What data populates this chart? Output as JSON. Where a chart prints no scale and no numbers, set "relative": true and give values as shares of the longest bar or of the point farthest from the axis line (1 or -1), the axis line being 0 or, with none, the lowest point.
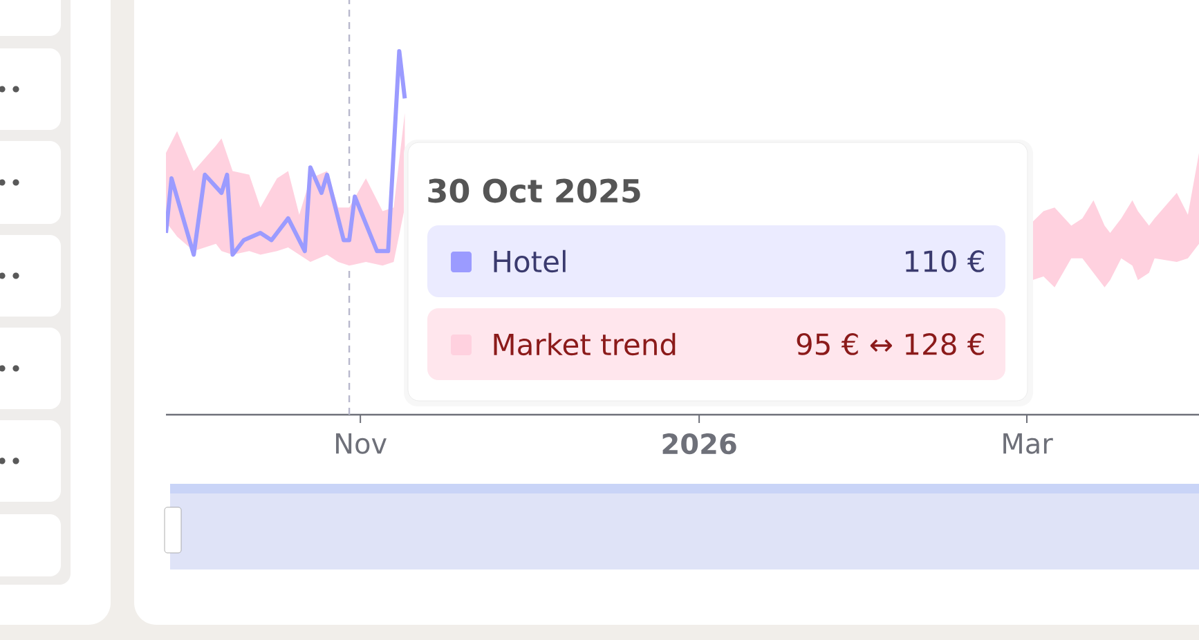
{
  "chart_data": {
    "type": "line",
    "relative": true,
    "xlim": [
      "2025-09-27",
      "2026-04-01"
    ],
    "xticks": [
      {
        "value": "2025-11-01",
        "label": "Nov"
      },
      {
        "value": "2026-01-01",
        "label": "**2026**"
      },
      {
        "value": "2026-03-01",
        "label": "Mar"
      }
    ],
    "series": [
      {
        "name": "Hotel",
        "color": "#9b9bff",
        "x": [
          "2025-09-27",
          "2025-09-28",
          "2025-10-02",
          "2025-10-04",
          "2025-10-07",
          "2025-10-08",
          "2025-10-09",
          "2025-10-11",
          "2025-10-14",
          "2025-10-16",
          "2025-10-19",
          "2025-10-22",
          "2025-10-23",
          "2025-10-25",
          "2025-10-26",
          "2025-10-29",
          "2025-10-30",
          "2025-10-31",
          "2025-11-04",
          "2025-11-06",
          "2025-11-08",
          "2025-11-09"
        ],
        "values": [
          0.5,
          0.65,
          0.44,
          0.66,
          0.61,
          0.66,
          0.44,
          0.48,
          0.5,
          0.48,
          0.54,
          0.45,
          0.68,
          0.61,
          0.66,
          0.48,
          0.48,
          0.6,
          0.45,
          0.45,
          1.0,
          0.87
        ]
      },
      {
        "name": "Market trend",
        "color": "#ffd1df",
        "x": [
          "2025-09-27",
          "2025-09-29",
          "2025-10-02",
          "2025-10-06",
          "2025-10-07",
          "2025-10-09",
          "2025-10-12",
          "2025-10-14",
          "2025-10-17",
          "2025-10-19",
          "2025-10-21",
          "2025-10-23",
          "2025-10-26",
          "2025-10-28",
          "2025-10-30",
          "2025-11-02",
          "2025-11-05",
          "2025-11-07",
          "2025-11-09",
          "2026-01-09",
          "2026-03-02",
          "2026-03-04",
          "2026-03-06",
          "2026-03-09",
          "2026-03-11",
          "2026-03-13",
          "2026-03-15",
          "2026-03-16",
          "2026-03-18",
          "2026-03-20",
          "2026-03-21",
          "2026-03-23",
          "2026-03-24",
          "2026-03-28",
          "2026-03-30",
          "2026-04-01"
        ],
        "values": [
          null,
          null,
          null,
          null,
          null,
          null,
          null,
          null,
          null,
          null,
          null,
          null,
          null,
          null,
          null,
          null,
          null,
          null,
          null,
          null,
          null,
          null,
          null,
          null,
          null,
          null,
          null,
          null,
          null,
          null,
          null,
          null,
          null,
          null,
          null,
          null
        ],
        "upper": [
          0.72,
          0.78,
          0.67,
          0.74,
          0.76,
          0.67,
          0.66,
          0.57,
          0.65,
          0.67,
          0.55,
          0.65,
          0.67,
          0.57,
          0.57,
          0.65,
          0.56,
          0.57,
          0.83,
          null,
          0.53,
          0.56,
          0.57,
          0.52,
          0.54,
          0.59,
          0.52,
          0.5,
          0.54,
          0.59,
          0.56,
          0.52,
          0.54,
          0.61,
          0.55,
          0.72
        ],
        "lower": [
          0.53,
          0.49,
          0.45,
          0.47,
          0.45,
          0.44,
          0.45,
          0.44,
          0.45,
          0.46,
          0.44,
          0.42,
          0.44,
          0.42,
          0.41,
          0.42,
          0.41,
          0.42,
          0.57,
          null,
          0.37,
          0.38,
          0.35,
          0.43,
          0.43,
          0.39,
          0.35,
          0.37,
          0.43,
          0.41,
          0.37,
          0.39,
          0.43,
          0.42,
          0.43,
          0.47
        ]
      }
    ],
    "ref_lines": [
      {
        "axis": "x",
        "value": "2025-10-30",
        "color": "#b8b8cc",
        "line_style": "dashed"
      }
    ],
    "annotations": [
      "30 Oct 2025",
      "110 €",
      "95 € ↔ 128 €"
    ]
  }
}
